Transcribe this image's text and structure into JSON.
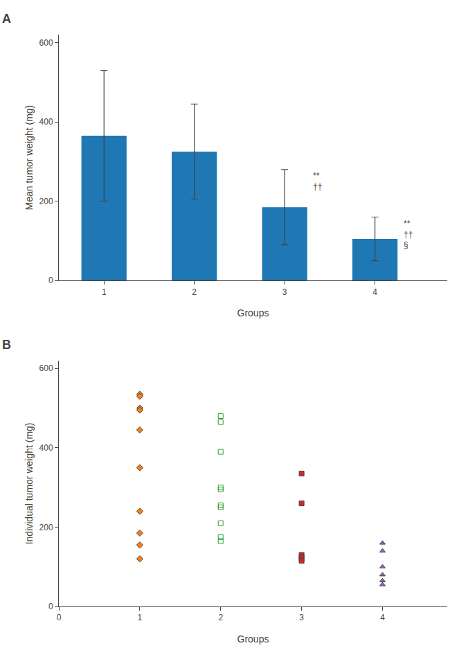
{
  "chart_data": [
    {
      "type": "bar",
      "label": "A",
      "x": [
        1,
        2,
        3,
        4
      ],
      "values": [
        365,
        325,
        185,
        105
      ],
      "errors": [
        165,
        120,
        95,
        55
      ],
      "xlabel": "Groups",
      "ylabel": "Mean tumor weight (mg)",
      "xlim": [
        0.5,
        4.8
      ],
      "xticks": [
        1,
        2,
        3,
        4
      ],
      "ylim": [
        0,
        620
      ],
      "yticks": [
        0,
        200,
        400,
        600
      ],
      "grid": false,
      "annotations": [
        {
          "x": 3,
          "lines": [
            "**",
            "††"
          ]
        },
        {
          "x": 4,
          "lines": [
            "**",
            "††",
            "§"
          ]
        }
      ]
    },
    {
      "type": "scatter",
      "label": "B",
      "series": [
        {
          "x": [
            1,
            1,
            1,
            1,
            1,
            1,
            1,
            1,
            1,
            1
          ],
          "values": [
            535,
            530,
            500,
            495,
            445,
            350,
            240,
            185,
            155,
            120
          ],
          "marker": "diamond"
        },
        {
          "x": [
            2,
            2,
            2,
            2,
            2,
            2,
            2,
            2,
            2,
            2
          ],
          "values": [
            480,
            465,
            390,
            300,
            295,
            255,
            250,
            210,
            175,
            165
          ],
          "marker": "square-open"
        },
        {
          "x": [
            3,
            3,
            3,
            3,
            3,
            3
          ],
          "values": [
            335,
            260,
            130,
            125,
            120,
            115
          ],
          "marker": "square"
        },
        {
          "x": [
            4,
            4,
            4,
            4,
            4,
            4
          ],
          "values": [
            160,
            140,
            100,
            80,
            65,
            55
          ],
          "marker": "triangle-up"
        }
      ],
      "xlabel": "Groups",
      "ylabel": "Individual tumor weight (mg)",
      "xlim": [
        0,
        4.8
      ],
      "xticks": [
        0,
        1,
        2,
        3,
        4
      ],
      "ylim": [
        0,
        620
      ],
      "yticks": [
        0,
        200,
        400,
        600
      ],
      "grid": false
    }
  ]
}
